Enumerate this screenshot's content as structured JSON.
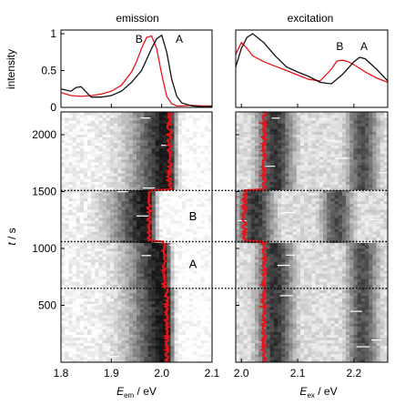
{
  "panels": {
    "emission_title": "emission",
    "excitation_title": "excitation"
  },
  "chart_data": [
    {
      "id": "emission-spectra",
      "type": "line",
      "ylabel": "intensity",
      "xlim": [
        1.8,
        2.1
      ],
      "ylim": [
        0,
        1.05
      ],
      "yticks": [
        0,
        0.5,
        1
      ],
      "ytick_labels": [
        "0",
        "0.5",
        "1"
      ],
      "annotations": [
        "B",
        "A"
      ],
      "series": [
        {
          "name": "B",
          "color": "#e8141a",
          "x": [
            1.8,
            1.82,
            1.84,
            1.86,
            1.88,
            1.9,
            1.92,
            1.94,
            1.95,
            1.96,
            1.97,
            1.98,
            1.99,
            2.0,
            2.01,
            2.02,
            2.03,
            2.04,
            2.06,
            2.08,
            2.1
          ],
          "y": [
            0.2,
            0.16,
            0.15,
            0.16,
            0.18,
            0.22,
            0.3,
            0.48,
            0.62,
            0.8,
            0.95,
            0.97,
            0.8,
            0.45,
            0.15,
            0.05,
            0.02,
            0.02,
            0.03,
            0.02,
            0.02
          ]
        },
        {
          "name": "A",
          "color": "#111111",
          "x": [
            1.8,
            1.82,
            1.83,
            1.84,
            1.86,
            1.88,
            1.9,
            1.92,
            1.94,
            1.96,
            1.97,
            1.98,
            1.99,
            2.0,
            2.01,
            2.02,
            2.03,
            2.04,
            2.06,
            2.08,
            2.1
          ],
          "y": [
            0.25,
            0.22,
            0.27,
            0.28,
            0.14,
            0.14,
            0.16,
            0.22,
            0.34,
            0.5,
            0.65,
            0.8,
            0.93,
            0.98,
            0.75,
            0.38,
            0.15,
            0.06,
            0.02,
            0.01,
            0.01
          ]
        }
      ]
    },
    {
      "id": "excitation-spectra",
      "type": "line",
      "xlim": [
        1.99,
        2.26
      ],
      "ylim": [
        0,
        1.05
      ],
      "annotations": [
        "B",
        "A"
      ],
      "series": [
        {
          "name": "B",
          "color": "#e8141a",
          "x": [
            1.99,
            2.0,
            2.01,
            2.02,
            2.04,
            2.06,
            2.08,
            2.1,
            2.12,
            2.14,
            2.16,
            2.17,
            2.18,
            2.19,
            2.2,
            2.22,
            2.24,
            2.26
          ],
          "y": [
            0.72,
            0.88,
            0.8,
            0.7,
            0.62,
            0.56,
            0.5,
            0.44,
            0.38,
            0.36,
            0.52,
            0.63,
            0.64,
            0.62,
            0.58,
            0.48,
            0.4,
            0.34
          ]
        },
        {
          "name": "A",
          "color": "#111111",
          "x": [
            1.99,
            2.0,
            2.01,
            2.02,
            2.04,
            2.06,
            2.08,
            2.1,
            2.12,
            2.14,
            2.16,
            2.18,
            2.2,
            2.21,
            2.22,
            2.24,
            2.26
          ],
          "y": [
            0.55,
            0.8,
            0.95,
            1.0,
            0.88,
            0.7,
            0.55,
            0.48,
            0.42,
            0.34,
            0.32,
            0.45,
            0.62,
            0.68,
            0.66,
            0.52,
            0.36
          ]
        }
      ]
    },
    {
      "id": "emission-trace",
      "type": "heatmap",
      "xlabel_main": "E",
      "xlabel_sub": "em",
      "xlabel_unit": " / eV",
      "ylabel_main": "t",
      "ylabel_unit": " / s",
      "xlim": [
        1.8,
        2.1
      ],
      "ylim": [
        0,
        2200
      ],
      "xticks": [
        1.8,
        1.9,
        2.0,
        2.1
      ],
      "xtick_labels": [
        "1.8",
        "1.9",
        "2.0",
        "2.1"
      ],
      "yticks": [
        500,
        1000,
        1500,
        2000
      ],
      "ytick_labels": [
        "500",
        "1000",
        "1500",
        "2000"
      ],
      "segment_labels": [
        {
          "text": "B",
          "t": 1280
        },
        {
          "text": "A",
          "t": 860
        }
      ],
      "segments": [
        {
          "t0": 0,
          "t1": 650,
          "peak": 2.01
        },
        {
          "t0": 650,
          "t1": 1060,
          "peak": 2.005
        },
        {
          "t0": 1060,
          "t1": 1510,
          "peak": 1.975
        },
        {
          "t0": 1510,
          "t1": 2200,
          "peak": 2.015
        }
      ],
      "peak_trace_color": "#e8141a"
    },
    {
      "id": "excitation-trace",
      "type": "heatmap",
      "xlabel_main": "E",
      "xlabel_sub": "ex",
      "xlabel_unit": " / eV",
      "xlim": [
        1.99,
        2.26
      ],
      "ylim": [
        0,
        2200
      ],
      "xticks": [
        2.0,
        2.1,
        2.2
      ],
      "xtick_labels": [
        "2.0",
        "2.1",
        "2.2"
      ],
      "segments": [
        {
          "t0": 0,
          "t1": 1060,
          "peak": 2.04
        },
        {
          "t0": 1060,
          "t1": 1510,
          "peak": 2.005
        },
        {
          "t0": 1510,
          "t1": 2200,
          "peak": 2.04
        }
      ],
      "peak_trace_color": "#e8141a"
    }
  ],
  "transitions_s": [
    650,
    1060,
    1510
  ]
}
